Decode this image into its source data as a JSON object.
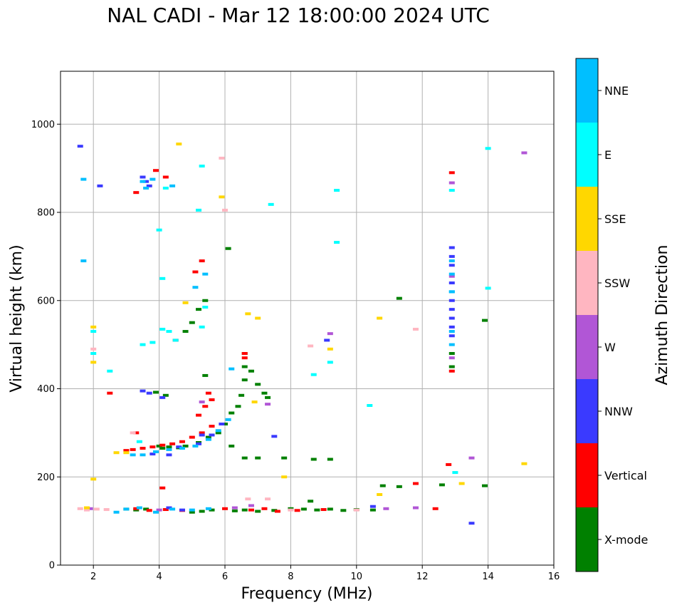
{
  "chart_data": {
    "type": "scatter",
    "title": "NAL CADI - Mar 12 18:00:00 2024 UTC",
    "xlabel": "Frequency (MHz)",
    "ylabel": "Virtual height (km)",
    "xlim": [
      1,
      16
    ],
    "ylim": [
      0,
      1120
    ],
    "xticks": [
      2,
      4,
      6,
      8,
      10,
      12,
      14,
      16
    ],
    "yticks": [
      0,
      200,
      400,
      600,
      800,
      1000
    ],
    "grid": true,
    "colorbar": {
      "title": "Azimuth Direction",
      "categories": [
        {
          "name": "X-mode",
          "color": "#008000"
        },
        {
          "name": "Vertical",
          "color": "#ff0000"
        },
        {
          "name": "NNW",
          "color": "#3a3aff"
        },
        {
          "name": "W",
          "color": "#b156d6"
        },
        {
          "name": "SSW",
          "color": "#ffb6c1"
        },
        {
          "name": "SSE",
          "color": "#ffd700"
        },
        {
          "name": "E",
          "color": "#00ffff"
        },
        {
          "name": "NNE",
          "color": "#00bfff"
        }
      ]
    },
    "series": [
      {
        "name": "X-mode",
        "points": [
          [
            4.0,
            270
          ],
          [
            4.3,
            268
          ],
          [
            4.6,
            266
          ],
          [
            4.8,
            270
          ],
          [
            5.2,
            278
          ],
          [
            5.5,
            290
          ],
          [
            5.8,
            300
          ],
          [
            6.0,
            320
          ],
          [
            6.2,
            345
          ],
          [
            6.4,
            360
          ],
          [
            6.5,
            385
          ],
          [
            6.6,
            420
          ],
          [
            6.6,
            450
          ],
          [
            6.6,
            480
          ],
          [
            6.8,
            440
          ],
          [
            7.0,
            410
          ],
          [
            7.2,
            390
          ],
          [
            7.3,
            380
          ],
          [
            5.0,
            120
          ],
          [
            5.3,
            122
          ],
          [
            5.6,
            125
          ],
          [
            6.3,
            123
          ],
          [
            6.6,
            125
          ],
          [
            7.0,
            122
          ],
          [
            7.5,
            124
          ],
          [
            8.0,
            128
          ],
          [
            8.4,
            127
          ],
          [
            8.8,
            125
          ],
          [
            9.2,
            127
          ],
          [
            9.6,
            124
          ],
          [
            10.0,
            126
          ],
          [
            10.5,
            125
          ],
          [
            8.7,
            240
          ],
          [
            9.2,
            240
          ],
          [
            6.6,
            243
          ],
          [
            7.0,
            243
          ],
          [
            7.8,
            243
          ],
          [
            6.2,
            270
          ],
          [
            10.8,
            180
          ],
          [
            11.3,
            178
          ],
          [
            12.6,
            182
          ],
          [
            13.9,
            180
          ],
          [
            12.9,
            450
          ],
          [
            12.9,
            480
          ],
          [
            11.3,
            605
          ],
          [
            13.9,
            555
          ],
          [
            6.1,
            718
          ],
          [
            8.6,
            145
          ],
          [
            5.4,
            600
          ],
          [
            5.2,
            580
          ],
          [
            5.0,
            550
          ],
          [
            4.8,
            530
          ],
          [
            3.0,
            127
          ],
          [
            3.3,
            125
          ],
          [
            3.6,
            127
          ],
          [
            4.1,
            265
          ],
          [
            3.9,
            392
          ],
          [
            4.2,
            385
          ],
          [
            5.4,
            430
          ]
        ]
      },
      {
        "name": "Vertical",
        "points": [
          [
            3.0,
            260
          ],
          [
            3.2,
            262
          ],
          [
            3.5,
            265
          ],
          [
            3.8,
            268
          ],
          [
            4.1,
            272
          ],
          [
            4.4,
            275
          ],
          [
            4.7,
            280
          ],
          [
            5.0,
            290
          ],
          [
            5.3,
            300
          ],
          [
            5.6,
            315
          ],
          [
            5.2,
            340
          ],
          [
            5.4,
            360
          ],
          [
            5.6,
            375
          ],
          [
            5.5,
            390
          ],
          [
            6.6,
            470
          ],
          [
            6.6,
            480
          ],
          [
            3.3,
            128
          ],
          [
            3.7,
            124
          ],
          [
            4.2,
            126
          ],
          [
            4.7,
            124
          ],
          [
            6.0,
            128
          ],
          [
            6.8,
            125
          ],
          [
            7.2,
            128
          ],
          [
            7.6,
            122
          ],
          [
            8.2,
            124
          ],
          [
            9.0,
            126
          ],
          [
            12.4,
            128
          ],
          [
            12.9,
            440
          ],
          [
            12.9,
            890
          ],
          [
            12.8,
            228
          ],
          [
            3.9,
            895
          ],
          [
            3.3,
            845
          ],
          [
            5.3,
            690
          ],
          [
            5.1,
            665
          ],
          [
            4.1,
            175
          ],
          [
            2.5,
            390
          ],
          [
            3.3,
            300
          ],
          [
            4.5,
            510
          ],
          [
            11.8,
            185
          ],
          [
            4.2,
            880
          ]
        ]
      },
      {
        "name": "NNW",
        "points": [
          [
            3.5,
            395
          ],
          [
            3.7,
            390
          ],
          [
            4.1,
            380
          ],
          [
            4.3,
            250
          ],
          [
            3.8,
            252
          ],
          [
            4.6,
            268
          ],
          [
            5.2,
            275
          ],
          [
            5.6,
            295
          ],
          [
            5.9,
            320
          ],
          [
            12.9,
            520
          ],
          [
            12.9,
            540
          ],
          [
            12.9,
            560
          ],
          [
            12.9,
            580
          ],
          [
            12.9,
            600
          ],
          [
            12.9,
            640
          ],
          [
            12.9,
            680
          ],
          [
            12.9,
            700
          ],
          [
            12.9,
            720
          ],
          [
            13.5,
            95
          ],
          [
            10.5,
            133
          ],
          [
            9.1,
            510
          ],
          [
            4.3,
            130
          ],
          [
            3.7,
            860
          ],
          [
            3.5,
            880
          ],
          [
            1.6,
            950
          ],
          [
            2.2,
            860
          ],
          [
            5.3,
            295
          ],
          [
            7.5,
            292
          ],
          [
            3.6,
            870
          ],
          [
            4.7,
            125
          ]
        ]
      },
      {
        "name": "W",
        "points": [
          [
            12.9,
            655
          ],
          [
            12.9,
            867
          ],
          [
            13.5,
            243
          ],
          [
            15.1,
            935
          ],
          [
            11.8,
            130
          ],
          [
            6.8,
            135
          ],
          [
            6.3,
            130
          ],
          [
            4.0,
            125
          ],
          [
            1.9,
            128
          ],
          [
            5.3,
            370
          ],
          [
            9.2,
            525
          ],
          [
            10.9,
            128
          ],
          [
            7.3,
            365
          ],
          [
            12.9,
            470
          ]
        ]
      },
      {
        "name": "SSW",
        "points": [
          [
            1.6,
            128
          ],
          [
            1.8,
            125
          ],
          [
            2.1,
            127
          ],
          [
            2.4,
            126
          ],
          [
            6.7,
            150
          ],
          [
            8.6,
            497
          ],
          [
            11.8,
            535
          ],
          [
            2.0,
            490
          ],
          [
            3.2,
            300
          ],
          [
            7.3,
            150
          ],
          [
            5.9,
            923
          ],
          [
            6.0,
            805
          ],
          [
            10.0,
            125
          ],
          [
            8.0,
            125
          ]
        ]
      },
      {
        "name": "SSE",
        "points": [
          [
            2.0,
            540
          ],
          [
            2.0,
            460
          ],
          [
            2.0,
            195
          ],
          [
            6.7,
            570
          ],
          [
            7.0,
            560
          ],
          [
            10.7,
            560
          ],
          [
            9.2,
            490
          ],
          [
            6.9,
            370
          ],
          [
            7.8,
            200
          ],
          [
            15.1,
            230
          ],
          [
            5.9,
            835
          ],
          [
            4.6,
            955
          ],
          [
            4.8,
            595
          ],
          [
            2.7,
            255
          ],
          [
            1.8,
            130
          ],
          [
            10.7,
            160
          ],
          [
            13.2,
            185
          ],
          [
            3.0,
            255
          ]
        ]
      },
      {
        "name": "E",
        "points": [
          [
            2.0,
            530
          ],
          [
            2.0,
            480
          ],
          [
            4.0,
            760
          ],
          [
            4.1,
            650
          ],
          [
            4.1,
            535
          ],
          [
            4.3,
            530
          ],
          [
            4.5,
            510
          ],
          [
            3.5,
            500
          ],
          [
            3.8,
            505
          ],
          [
            5.4,
            585
          ],
          [
            5.3,
            540
          ],
          [
            8.7,
            432
          ],
          [
            9.2,
            460
          ],
          [
            9.4,
            850
          ],
          [
            10.4,
            362
          ],
          [
            13.0,
            210
          ],
          [
            12.9,
            850
          ],
          [
            14.0,
            945
          ],
          [
            14.0,
            628
          ],
          [
            7.4,
            818
          ],
          [
            5.2,
            805
          ],
          [
            9.4,
            732
          ],
          [
            5.3,
            905
          ],
          [
            2.5,
            440
          ],
          [
            3.4,
            280
          ],
          [
            4.2,
            855
          ]
        ]
      },
      {
        "name": "NNE",
        "points": [
          [
            3.2,
            250
          ],
          [
            3.5,
            250
          ],
          [
            3.9,
            257
          ],
          [
            4.3,
            262
          ],
          [
            4.7,
            265
          ],
          [
            5.1,
            270
          ],
          [
            5.5,
            285
          ],
          [
            5.8,
            305
          ],
          [
            6.1,
            330
          ],
          [
            3.5,
            870
          ],
          [
            3.8,
            875
          ],
          [
            3.6,
            855
          ],
          [
            4.4,
            860
          ],
          [
            2.7,
            120
          ],
          [
            3.0,
            127
          ],
          [
            3.4,
            130
          ],
          [
            3.9,
            120
          ],
          [
            4.4,
            127
          ],
          [
            5.0,
            125
          ],
          [
            5.5,
            128
          ],
          [
            12.9,
            690
          ],
          [
            12.9,
            660
          ],
          [
            12.9,
            620
          ],
          [
            12.9,
            500
          ],
          [
            12.9,
            530
          ],
          [
            12.9,
            620
          ],
          [
            1.7,
            690
          ],
          [
            1.7,
            875
          ],
          [
            6.2,
            445
          ],
          [
            5.4,
            660
          ],
          [
            5.1,
            630
          ]
        ]
      }
    ]
  }
}
